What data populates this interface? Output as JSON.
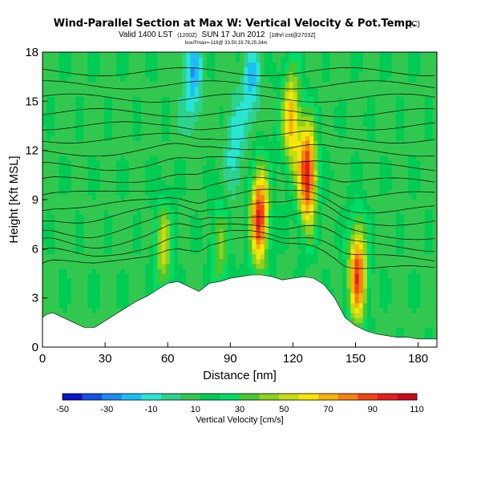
{
  "header": {
    "title": "Wind-Parallel Section at Max W: Vertical Velocity & Pot.Temp.",
    "title_mark": "(C)",
    "valid_line": "Valid 1400 LST",
    "valid_utc": "(1200Z)",
    "valid_date": "SUN 17 Jun 2012",
    "valid_run": "[18hrl cst@2703Z]",
    "info_line": "box/Fmax=-118@ 33.50,19.78,25.34m"
  },
  "colors": {
    "scale": [
      "#0a14c8",
      "#1450e6",
      "#1e8cf0",
      "#1ebef5",
      "#28e6d2",
      "#2dd28c",
      "#32c850",
      "#00cc55",
      "#00dd66",
      "#46c832",
      "#8cd21e",
      "#c8dc14",
      "#f5e60a",
      "#f5b40a",
      "#f58214",
      "#f04614",
      "#e61e1e",
      "#c80a1e"
    ],
    "terrain": "#ffffff",
    "background": "#00d46a"
  },
  "chart_data": {
    "type": "heatmap",
    "title": "Wind-Parallel Section at Max W: Vertical Velocity & Pot.Temp.",
    "xlabel": "Distance [nm]",
    "ylabel": "Height [Kft MSL]",
    "xlim": [
      0,
      189
    ],
    "ylim": [
      0,
      18
    ],
    "xticks": [
      0,
      30,
      60,
      90,
      120,
      150,
      180
    ],
    "yticks": [
      0,
      3,
      6,
      9,
      12,
      15,
      18
    ],
    "colorbar": {
      "label": "Vertical Velocity [cm/s]",
      "min": -50,
      "max": 110,
      "ticks": [
        -50,
        -30,
        -10,
        10,
        30,
        50,
        70,
        90,
        110
      ]
    },
    "terrain_profile": {
      "x": [
        0,
        2,
        5,
        10,
        15,
        20,
        25,
        30,
        35,
        40,
        45,
        50,
        55,
        60,
        65,
        70,
        75,
        80,
        85,
        90,
        95,
        100,
        105,
        110,
        115,
        120,
        125,
        130,
        135,
        140,
        145,
        150,
        155,
        160,
        165,
        170,
        175,
        180,
        189
      ],
      "height_kft": [
        1.8,
        2.0,
        2.1,
        1.8,
        1.5,
        1.2,
        1.2,
        1.6,
        2.0,
        2.4,
        2.8,
        3.1,
        3.5,
        3.9,
        4.0,
        3.7,
        3.4,
        3.9,
        4.0,
        4.2,
        4.3,
        4.4,
        4.4,
        4.3,
        4.1,
        4.2,
        4.3,
        4.2,
        3.8,
        3.0,
        1.8,
        1.3,
        1.0,
        0.8,
        0.7,
        0.6,
        0.6,
        0.5,
        0.5
      ]
    },
    "updraft_cores": [
      {
        "x_nm": 127,
        "z_kft": 10.5,
        "w_cms": 100
      },
      {
        "x_nm": 104,
        "z_kft": 8.0,
        "w_cms": 95
      },
      {
        "x_nm": 119,
        "z_kft": 14.0,
        "w_cms": 70
      },
      {
        "x_nm": 151,
        "z_kft": 4.5,
        "w_cms": 90
      },
      {
        "x_nm": 58,
        "z_kft": 6.0,
        "w_cms": 50
      },
      {
        "x_nm": 85,
        "z_kft": 6.0,
        "w_cms": 40
      }
    ],
    "downdraft_cores": [
      {
        "x_nm": 72,
        "z_kft": 16.5,
        "w_cms": -20
      },
      {
        "x_nm": 100,
        "z_kft": 16.0,
        "w_cms": -15
      },
      {
        "x_nm": 92,
        "z_kft": 12.0,
        "w_cms": -10
      }
    ],
    "pot_temp_contours_kft": [
      5.0,
      5.6,
      6.3,
      7.0,
      7.8,
      8.5,
      9.3,
      10.1,
      11.0,
      11.9,
      12.7,
      13.5,
      14.3,
      15.2,
      16.0,
      16.8
    ]
  }
}
